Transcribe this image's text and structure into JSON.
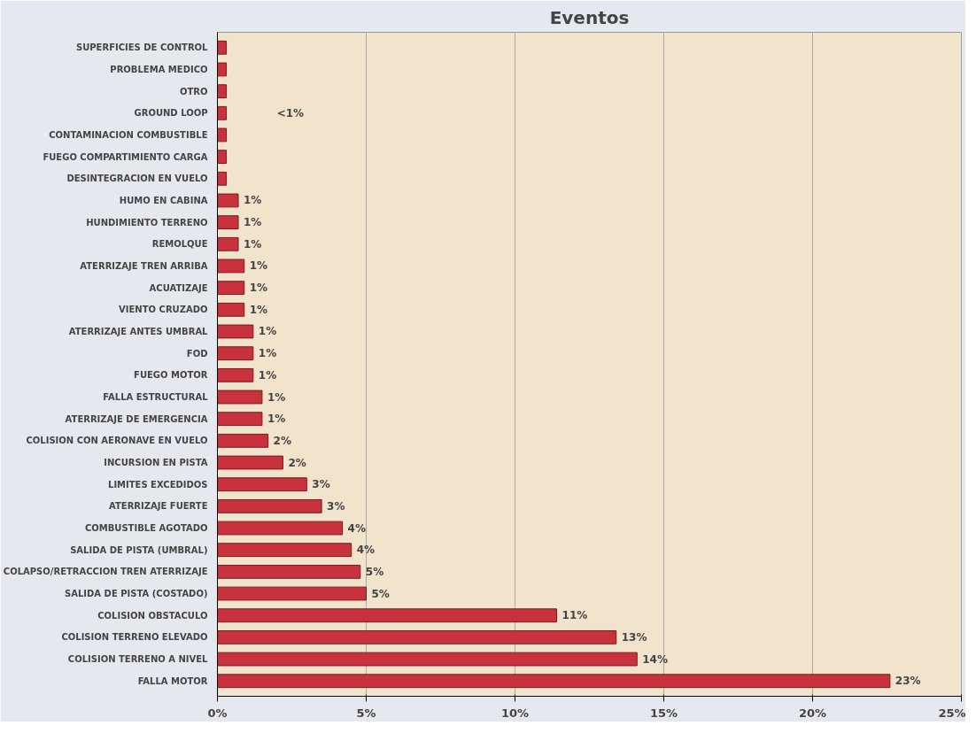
{
  "chart_data": {
    "type": "bar",
    "orientation": "horizontal",
    "title": "Eventos",
    "categories": [
      "SUPERFICIES DE CONTROL",
      "PROBLEMA MEDICO",
      "OTRO",
      "GROUND LOOP",
      "CONTAMINACION COMBUSTIBLE",
      "FUEGO COMPARTIMIENTO CARGA",
      "DESINTEGRACION EN VUELO",
      "HUMO EN CABINA",
      "HUNDIMIENTO TERRENO",
      "REMOLQUE",
      "ATERRIZAJE TREN ARRIBA",
      "ACUATIZAJE",
      "VIENTO CRUZADO",
      "ATERRIZAJE ANTES UMBRAL",
      "FOD",
      "FUEGO MOTOR",
      "FALLA ESTRUCTURAL",
      "ATERRIZAJE DE EMERGENCIA",
      "COLISION CON AERONAVE EN VUELO",
      "INCURSION EN PISTA",
      "LIMITES EXCEDIDOS",
      "ATERRIZAJE FUERTE",
      "COMBUSTIBLE AGOTADO",
      "SALIDA DE PISTA (UMBRAL)",
      "COLAPSO/RETRACCION TREN ATERRIZAJE",
      "SALIDA DE PISTA (COSTADO)",
      "COLISION OBSTACULO",
      "COLISION TERRENO ELEVADO",
      "COLISION TERRENO A NIVEL",
      "FALLA MOTOR"
    ],
    "values": [
      0.3,
      0.3,
      0.3,
      0.3,
      0.3,
      0.3,
      0.3,
      0.7,
      0.7,
      0.7,
      0.9,
      0.9,
      0.9,
      1.2,
      1.2,
      1.2,
      1.5,
      1.5,
      1.7,
      2.2,
      3.0,
      3.5,
      4.2,
      4.5,
      4.8,
      5.0,
      11.4,
      13.4,
      14.1,
      22.6
    ],
    "value_labels": [
      null,
      null,
      null,
      null,
      null,
      null,
      null,
      "1%",
      "1%",
      "1%",
      "1%",
      "1%",
      "1%",
      "1%",
      "1%",
      "1%",
      "1%",
      "1%",
      "2%",
      "2%",
      "3%",
      "3%",
      "4%",
      "4%",
      "5%",
      "5%",
      "11%",
      "13%",
      "14%",
      "23%"
    ],
    "color": "#c8323c",
    "annotations": [
      "<1%"
    ],
    "xlim": [
      0,
      25
    ],
    "xticks": [
      {
        "value": 0,
        "label": "0%"
      },
      {
        "value": 5,
        "label": "5%"
      },
      {
        "value": 10,
        "label": "10%"
      },
      {
        "value": 15,
        "label": "15%"
      },
      {
        "value": 20,
        "label": "20%"
      },
      {
        "value": 25,
        "label": "25%"
      }
    ],
    "grid": "x"
  }
}
